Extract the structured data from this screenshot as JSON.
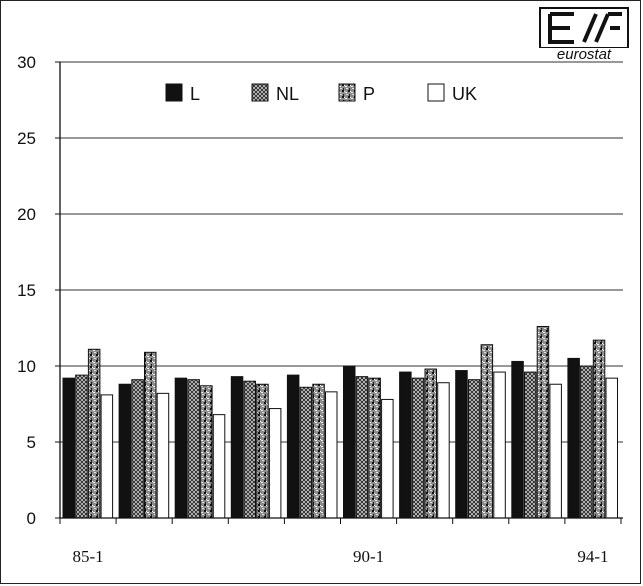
{
  "logo": {
    "text": "eurostat"
  },
  "chart_data": {
    "type": "bar",
    "title": "",
    "xlabel": "",
    "ylabel": "",
    "ylim": [
      0,
      30
    ],
    "yticks": [
      "0",
      "5",
      "10",
      "15",
      "20",
      "25",
      "30"
    ],
    "grid": true,
    "legend_position": "top",
    "x_tick_labels": [
      {
        "index": 0,
        "label": "85-1"
      },
      {
        "index": 5,
        "label": "90-1"
      },
      {
        "index": 9,
        "label": "94-1"
      }
    ],
    "categories": [
      "1",
      "2",
      "3",
      "4",
      "5",
      "6",
      "7",
      "8",
      "9",
      "10"
    ],
    "series": [
      {
        "name": "L",
        "color": "#111111",
        "pattern": "solid",
        "values": [
          9.2,
          8.8,
          9.2,
          9.3,
          9.4,
          10.0,
          9.6,
          9.7,
          10.3,
          10.5
        ]
      },
      {
        "name": "NL",
        "color": "#9a9a9a",
        "pattern": "crosshatch",
        "values": [
          9.4,
          9.1,
          9.1,
          9.0,
          8.6,
          9.3,
          9.2,
          9.1,
          9.6,
          10.0
        ]
      },
      {
        "name": "P",
        "color": "#6a6a6a",
        "pattern": "speckled",
        "values": [
          11.1,
          10.9,
          8.7,
          8.8,
          8.8,
          9.2,
          9.8,
          11.4,
          12.6,
          11.7
        ]
      },
      {
        "name": "UK",
        "color": "#ffffff",
        "pattern": "outline",
        "values": [
          8.1,
          8.2,
          6.8,
          7.2,
          8.3,
          7.8,
          8.9,
          9.6,
          8.8,
          9.2
        ]
      }
    ]
  }
}
